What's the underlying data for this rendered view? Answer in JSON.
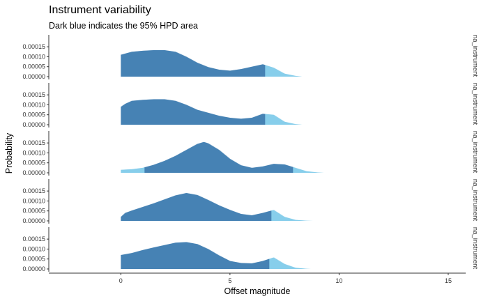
{
  "chart_data": {
    "type": "area",
    "title": "Instrument variability",
    "subtitle": "Dark blue indicates the 95% HPD area",
    "xlabel": "Offset magnitude",
    "ylabel": "Probability",
    "xlim": [
      -3.3,
      15.8
    ],
    "ylim": [
      0,
      0.00021
    ],
    "x_ticks": [
      "0",
      "5",
      "10",
      "15"
    ],
    "x_tick_values": [
      0,
      5,
      10,
      15
    ],
    "y_ticks": [
      "0.00000",
      "0.00005",
      "0.00010",
      "0.00015"
    ],
    "y_tick_values": [
      0,
      5e-05,
      0.0001,
      0.00015
    ],
    "grid": false,
    "colors": {
      "hpd": "#4682b4",
      "tail": "#87ceeb",
      "axis": "#333333"
    },
    "series": [
      {
        "name": "na_instrument",
        "hpd": [
          0.0,
          6.6
        ],
        "x": [
          0.0,
          0.5,
          1.0,
          1.5,
          2.0,
          2.5,
          3.0,
          3.5,
          4.0,
          4.5,
          5.0,
          5.5,
          6.0,
          6.5,
          7.0,
          7.5,
          8.0,
          8.3
        ],
        "values": [
          0.00011,
          0.000125,
          0.00013,
          0.000133,
          0.000133,
          0.000125,
          0.0001,
          7e-05,
          4.8e-05,
          3.5e-05,
          3e-05,
          3.8e-05,
          5e-05,
          6.2e-05,
          4.5e-05,
          1.5e-05,
          4e-06,
          0.0
        ]
      },
      {
        "name": "na_instrument",
        "hpd": [
          0.0,
          6.6
        ],
        "x": [
          0.0,
          0.2,
          0.5,
          1.0,
          1.5,
          2.0,
          2.5,
          3.0,
          3.5,
          4.0,
          4.5,
          5.0,
          5.5,
          6.0,
          6.5,
          7.0,
          7.5,
          8.0,
          8.3
        ],
        "values": [
          9e-05,
          0.000105,
          0.00012,
          0.000125,
          0.000128,
          0.000128,
          0.00012,
          0.0001,
          7.5e-05,
          6e-05,
          4.5e-05,
          3.5e-05,
          3e-05,
          3.5e-05,
          5.5e-05,
          5e-05,
          1.5e-05,
          3e-06,
          0.0
        ]
      },
      {
        "name": "na_instrument",
        "hpd": [
          1.1,
          7.9
        ],
        "x": [
          0.0,
          0.5,
          1.0,
          1.5,
          2.0,
          2.5,
          3.0,
          3.5,
          3.8,
          4.0,
          4.5,
          5.0,
          5.5,
          6.0,
          6.5,
          7.0,
          7.5,
          8.0,
          8.5,
          9.0,
          9.3
        ],
        "values": [
          1.5e-05,
          1.8e-05,
          2.5e-05,
          4e-05,
          6e-05,
          8.5e-05,
          0.000115,
          0.000145,
          0.000155,
          0.000148,
          0.000115,
          7e-05,
          3.8e-05,
          2.5e-05,
          3.2e-05,
          4.5e-05,
          4.2e-05,
          2.5e-05,
          8e-06,
          2e-06,
          0.0
        ]
      },
      {
        "name": "na_instrument",
        "hpd": [
          0.0,
          6.9
        ],
        "x": [
          0.0,
          0.2,
          0.5,
          1.0,
          1.5,
          2.0,
          2.5,
          3.0,
          3.5,
          4.0,
          4.5,
          5.0,
          5.5,
          6.0,
          6.5,
          7.0,
          7.5,
          8.0,
          8.5,
          8.8
        ],
        "values": [
          2e-05,
          4e-05,
          5.2e-05,
          7e-05,
          8.8e-05,
          0.000108,
          0.000128,
          0.00014,
          0.00013,
          0.000105,
          7.8e-05,
          5.5e-05,
          3.5e-05,
          2.8e-05,
          4e-05,
          5.5e-05,
          2e-05,
          5e-06,
          1e-06,
          0.0
        ]
      },
      {
        "name": "na_instrument",
        "hpd": [
          0.0,
          6.8
        ],
        "x": [
          0.0,
          0.5,
          1.0,
          1.5,
          2.0,
          2.5,
          3.0,
          3.5,
          4.0,
          4.5,
          5.0,
          5.5,
          6.0,
          6.5,
          7.0,
          7.5,
          8.0,
          8.5,
          8.7
        ],
        "values": [
          7e-05,
          8e-05,
          9.5e-05,
          0.000108,
          0.00012,
          0.000132,
          0.000135,
          0.000125,
          0.0001,
          6.8e-05,
          4e-05,
          3e-05,
          2.8e-05,
          4e-05,
          5.8e-05,
          2.5e-05,
          6e-06,
          1e-06,
          0.0
        ]
      }
    ]
  }
}
